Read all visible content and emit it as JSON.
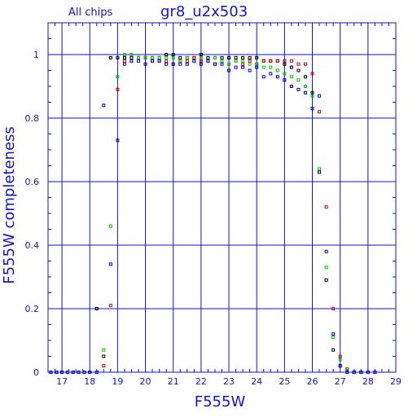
{
  "chart_data": {
    "type": "scatter",
    "title": "gr8_u2x503",
    "subtitle": "All chips",
    "xlabel": "F555W",
    "ylabel": "F555W completeness",
    "xlim": [
      16.5,
      29
    ],
    "ylim": [
      0,
      1.1
    ],
    "x_ticks": [
      17,
      18,
      19,
      20,
      21,
      22,
      23,
      24,
      25,
      26,
      27,
      28,
      29
    ],
    "y_ticks": [
      0,
      0.2,
      0.4,
      0.6,
      0.8,
      1
    ],
    "y_tick_labels": [
      "0",
      "0.2",
      "0.4",
      "0.6",
      "0.8",
      "1"
    ],
    "grid": true,
    "colors": {
      "axis": "#1414c8",
      "grid": "#1414c8",
      "black": "#000000",
      "red": "#dd0000",
      "green": "#00cc00",
      "blue": "#0000dd"
    },
    "series": [
      {
        "color_key": "black",
        "points": [
          [
            16.6,
            0
          ],
          [
            16.8,
            0
          ],
          [
            17.0,
            0
          ],
          [
            17.2,
            0
          ],
          [
            17.4,
            0
          ],
          [
            17.6,
            0
          ],
          [
            17.8,
            0
          ],
          [
            18.0,
            0
          ],
          [
            18.25,
            0.2
          ],
          [
            18.5,
            0.05
          ],
          [
            18.75,
            0.99
          ],
          [
            19.0,
            0.99
          ],
          [
            19.25,
            0.99
          ],
          [
            19.5,
            0.99
          ],
          [
            19.75,
            0.99
          ],
          [
            20.0,
            0.99
          ],
          [
            20.25,
            0.99
          ],
          [
            20.5,
            0.99
          ],
          [
            20.75,
            1.0
          ],
          [
            21.0,
            1.0
          ],
          [
            21.25,
            0.99
          ],
          [
            21.5,
            0.99
          ],
          [
            21.75,
            0.99
          ],
          [
            22.0,
            1.0
          ],
          [
            22.25,
            0.99
          ],
          [
            22.5,
            0.99
          ],
          [
            22.75,
            0.99
          ],
          [
            23.0,
            0.99
          ],
          [
            23.25,
            0.99
          ],
          [
            23.5,
            0.99
          ],
          [
            23.75,
            0.99
          ],
          [
            24.0,
            0.99
          ],
          [
            24.25,
            0.98
          ],
          [
            24.5,
            0.98
          ],
          [
            24.75,
            0.98
          ],
          [
            25.0,
            0.97
          ],
          [
            25.25,
            0.96
          ],
          [
            25.5,
            0.95
          ],
          [
            25.75,
            0.93
          ],
          [
            26.0,
            0.88
          ],
          [
            26.25,
            0.63
          ],
          [
            26.5,
            0.29
          ],
          [
            26.75,
            0.07
          ],
          [
            27.0,
            0.02
          ],
          [
            27.25,
            0.01
          ],
          [
            27.5,
            0
          ],
          [
            27.75,
            0
          ],
          [
            28.0,
            0
          ],
          [
            28.25,
            0
          ]
        ]
      },
      {
        "color_key": "red",
        "points": [
          [
            18.5,
            0.02
          ],
          [
            18.75,
            0.21
          ],
          [
            19.0,
            0.89
          ],
          [
            19.25,
            0.98
          ],
          [
            19.5,
            0.98
          ],
          [
            19.75,
            0.99
          ],
          [
            20.0,
            0.99
          ],
          [
            20.25,
            0.98
          ],
          [
            20.5,
            0.98
          ],
          [
            20.75,
            0.98
          ],
          [
            21.0,
            0.97
          ],
          [
            21.25,
            0.98
          ],
          [
            21.5,
            0.98
          ],
          [
            21.75,
            0.99
          ],
          [
            22.0,
            0.98
          ],
          [
            22.25,
            0.98
          ],
          [
            22.5,
            0.97
          ],
          [
            22.75,
            0.98
          ],
          [
            23.0,
            0.97
          ],
          [
            23.25,
            0.98
          ],
          [
            23.5,
            0.97
          ],
          [
            23.75,
            0.98
          ],
          [
            24.0,
            0.97
          ],
          [
            24.25,
            0.98
          ],
          [
            24.5,
            0.98
          ],
          [
            24.75,
            0.98
          ],
          [
            25.0,
            0.98
          ],
          [
            25.25,
            0.98
          ],
          [
            25.5,
            0.97
          ],
          [
            25.75,
            0.97
          ],
          [
            26.0,
            0.94
          ],
          [
            26.25,
            0.82
          ],
          [
            26.5,
            0.52
          ],
          [
            26.75,
            0.2
          ],
          [
            27.0,
            0.05
          ],
          [
            27.25,
            0.01
          ],
          [
            27.5,
            0
          ],
          [
            27.75,
            0
          ]
        ]
      },
      {
        "color_key": "green",
        "points": [
          [
            18.5,
            0.07
          ],
          [
            18.75,
            0.46
          ],
          [
            19.0,
            0.93
          ],
          [
            19.25,
            1.0
          ],
          [
            19.5,
            1.0
          ],
          [
            19.75,
            0.99
          ],
          [
            20.0,
            0.99
          ],
          [
            20.25,
            0.99
          ],
          [
            20.5,
            0.99
          ],
          [
            20.75,
            0.99
          ],
          [
            21.0,
            0.99
          ],
          [
            21.25,
            0.98
          ],
          [
            21.5,
            0.99
          ],
          [
            21.75,
            0.98
          ],
          [
            22.0,
            0.99
          ],
          [
            22.25,
            0.98
          ],
          [
            22.5,
            0.99
          ],
          [
            22.75,
            0.98
          ],
          [
            23.0,
            0.97
          ],
          [
            23.25,
            0.98
          ],
          [
            23.5,
            0.98
          ],
          [
            23.75,
            0.97
          ],
          [
            24.0,
            0.97
          ],
          [
            24.25,
            0.96
          ],
          [
            24.5,
            0.96
          ],
          [
            24.75,
            0.95
          ],
          [
            25.0,
            0.94
          ],
          [
            25.25,
            0.93
          ],
          [
            25.5,
            0.92
          ],
          [
            25.75,
            0.9
          ],
          [
            26.0,
            0.87
          ],
          [
            26.25,
            0.64
          ],
          [
            26.5,
            0.33
          ],
          [
            26.75,
            0.11
          ],
          [
            27.0,
            0.04
          ],
          [
            27.25,
            0.01
          ],
          [
            27.5,
            0
          ],
          [
            27.75,
            0
          ],
          [
            28.0,
            0
          ]
        ]
      },
      {
        "color_key": "blue",
        "points": [
          [
            16.6,
            0
          ],
          [
            16.8,
            0
          ],
          [
            17.0,
            0
          ],
          [
            17.2,
            0
          ],
          [
            17.4,
            0
          ],
          [
            17.6,
            0
          ],
          [
            17.8,
            0
          ],
          [
            18.0,
            0
          ],
          [
            18.25,
            0
          ],
          [
            18.5,
            0.84
          ],
          [
            18.75,
            0.34
          ],
          [
            19.0,
            0.73
          ],
          [
            19.25,
            0.97
          ],
          [
            19.5,
            0.98
          ],
          [
            19.75,
            0.98
          ],
          [
            20.0,
            0.97
          ],
          [
            20.25,
            0.98
          ],
          [
            20.5,
            0.98
          ],
          [
            20.75,
            0.97
          ],
          [
            21.0,
            0.97
          ],
          [
            21.25,
            0.97
          ],
          [
            21.5,
            0.97
          ],
          [
            21.75,
            0.98
          ],
          [
            22.0,
            0.97
          ],
          [
            22.25,
            0.98
          ],
          [
            22.5,
            0.97
          ],
          [
            22.75,
            0.97
          ],
          [
            23.0,
            0.95
          ],
          [
            23.25,
            0.96
          ],
          [
            23.5,
            0.96
          ],
          [
            23.75,
            0.95
          ],
          [
            24.0,
            0.96
          ],
          [
            24.25,
            0.93
          ],
          [
            24.5,
            0.94
          ],
          [
            24.75,
            0.93
          ],
          [
            25.0,
            0.92
          ],
          [
            25.25,
            0.9
          ],
          [
            25.5,
            0.89
          ],
          [
            25.75,
            0.88
          ],
          [
            26.0,
            0.83
          ],
          [
            26.25,
            0.87
          ],
          [
            26.5,
            0.38
          ],
          [
            26.75,
            0.12
          ],
          [
            27.0,
            0.02
          ],
          [
            27.25,
            0
          ],
          [
            27.5,
            0
          ],
          [
            27.75,
            0
          ],
          [
            28.0,
            0
          ],
          [
            28.25,
            0
          ]
        ]
      }
    ]
  }
}
